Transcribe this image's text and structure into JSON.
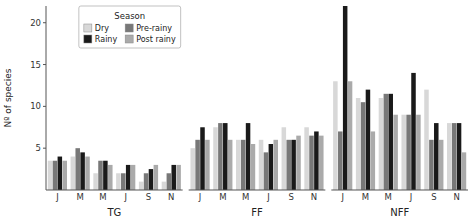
{
  "chart_data": [
    {
      "type": "bar",
      "categories": [
        "J",
        "M",
        "M",
        "J",
        "S",
        "N"
      ],
      "series": [
        {
          "name": "Dry",
          "color": "#d8d8d8",
          "values": [
            3.5,
            4.0,
            2.0,
            2.0,
            1.0,
            1.0
          ]
        },
        {
          "name": "Pre-rainy",
          "color": "#787878",
          "values": [
            3.5,
            5.0,
            3.5,
            2.0,
            2.0,
            2.0
          ]
        },
        {
          "name": "Rainy",
          "color": "#1a1a1a",
          "values": [
            4.0,
            4.5,
            3.5,
            3.0,
            2.5,
            3.0
          ]
        },
        {
          "name": "Post rainy",
          "color": "#aaaaaa",
          "values": [
            3.5,
            4.0,
            3.0,
            3.0,
            3.0,
            3.0
          ]
        }
      ],
      "xlabel": "TG",
      "ylabel": "Nº of species",
      "ylim": [
        0,
        22
      ],
      "yticks": [
        5,
        10,
        15,
        20
      ],
      "legend": "upper right",
      "legend_title": "Season"
    },
    {
      "type": "bar",
      "categories": [
        "J",
        "M",
        "M",
        "J",
        "S",
        "N"
      ],
      "series": [
        {
          "name": "Dry",
          "color": "#d8d8d8",
          "values": [
            5.0,
            7.5,
            6.0,
            6.0,
            7.5,
            7.5
          ]
        },
        {
          "name": "Pre-rainy",
          "color": "#787878",
          "values": [
            6.0,
            8.0,
            6.0,
            4.5,
            6.0,
            6.5
          ]
        },
        {
          "name": "Rainy",
          "color": "#1a1a1a",
          "values": [
            7.5,
            8.0,
            8.0,
            5.5,
            6.0,
            7.0
          ]
        },
        {
          "name": "Post rainy",
          "color": "#aaaaaa",
          "values": [
            6.0,
            6.0,
            5.5,
            6.0,
            6.5,
            6.5
          ]
        }
      ],
      "xlabel": "FF",
      "ylim": [
        0,
        22
      ],
      "tick_labels": "x"
    },
    {
      "type": "bar",
      "categories": [
        "J",
        "M",
        "M",
        "J",
        "S",
        "N"
      ],
      "series": [
        {
          "name": "Dry",
          "color": "#d8d8d8",
          "values": [
            13.0,
            11.0,
            11.0,
            9.0,
            12.0,
            8.0
          ]
        },
        {
          "name": "Pre-rainy",
          "color": "#787878",
          "values": [
            7.0,
            10.5,
            11.5,
            9.0,
            6.0,
            8.0
          ]
        },
        {
          "name": "Rainy",
          "color": "#1a1a1a",
          "values": [
            22.0,
            12.0,
            11.5,
            14.0,
            8.0,
            8.0
          ]
        },
        {
          "name": "Post rainy",
          "color": "#aaaaaa",
          "values": [
            13.0,
            7.0,
            9.0,
            9.0,
            6.0,
            4.5
          ]
        }
      ],
      "xlabel": "NFF",
      "ylim": [
        0,
        22
      ],
      "tick_labels": "x"
    }
  ]
}
